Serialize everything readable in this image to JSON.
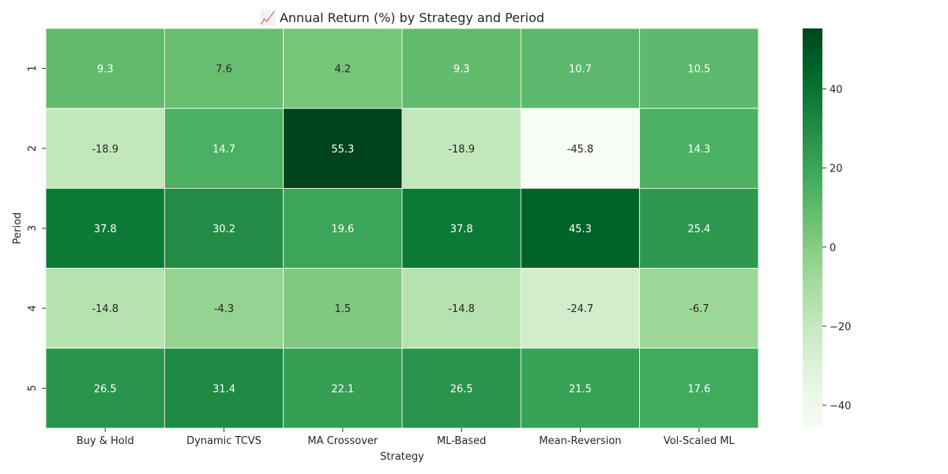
{
  "chart_data": {
    "type": "heatmap",
    "title": "📈 Annual Return (%) by Strategy and Period",
    "xlabel": "Strategy",
    "ylabel": "Period",
    "x_categories": [
      "Buy & Hold",
      "Dynamic TCVS",
      "MA Crossover",
      "ML-Based",
      "Mean-Reversion",
      "Vol-Scaled ML"
    ],
    "y_categories": [
      "1",
      "2",
      "3",
      "4",
      "5"
    ],
    "values": [
      [
        9.3,
        7.6,
        4.2,
        9.3,
        10.7,
        10.5
      ],
      [
        -18.9,
        14.7,
        55.3,
        -18.9,
        -45.8,
        14.3
      ],
      [
        37.8,
        30.2,
        19.6,
        37.8,
        45.3,
        25.4
      ],
      [
        -14.8,
        -4.3,
        1.5,
        -14.8,
        -24.7,
        -6.7
      ],
      [
        26.5,
        31.4,
        22.1,
        26.5,
        21.5,
        17.6
      ]
    ],
    "value_range": [
      -45.8,
      55.3
    ],
    "colormap": "Greens",
    "colorbar": {
      "ticks": [
        40,
        20,
        0,
        -20,
        -40
      ],
      "tick_labels": [
        "40",
        "20",
        "0",
        "−20",
        "−40"
      ]
    }
  }
}
